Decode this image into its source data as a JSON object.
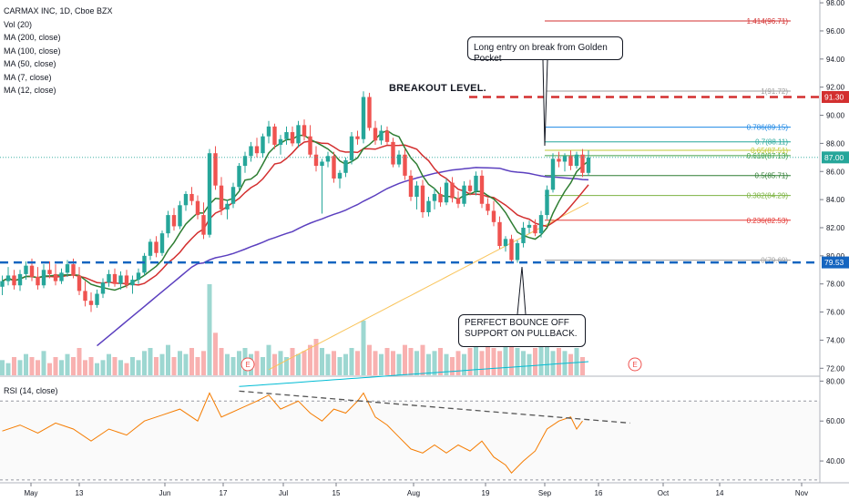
{
  "legend": {
    "symbol": "CARMAX INC, 1D, Cboe BZX",
    "lines": [
      "Vol (20)",
      "MA (200, close)",
      "MA (100, close)",
      "MA (50, close)",
      "MA (7, close)",
      "MA (12, close)"
    ]
  },
  "rsi_label": "RSI (14, close)",
  "annotations": {
    "breakout": "BREAKOUT LEVEL.",
    "long_entry": "Long entry on break from Golden Pocket",
    "bounce": "PERFECT BOUNCE OFF SUPPORT ON PULLBACK.",
    "earnings": [
      "E",
      "E"
    ]
  },
  "price_badges": {
    "resistance": "91.30",
    "support": "79.53",
    "last": "87.00"
  },
  "colors": {
    "up": "#26a69a",
    "down": "#ef5350",
    "ma200": "#00bcd4",
    "ma100": "#f9c45a",
    "ma50": "#5b3fbf",
    "ma7": "#2e7d32",
    "ma12": "#d32f2f",
    "resistance": "#d32f2f",
    "support": "#1565c0",
    "rsi": "#f57c00"
  },
  "chart_data": {
    "type": "candlestick",
    "x_ticks": [
      "May",
      "13",
      "Jun",
      "17",
      "Jul",
      "15",
      "Aug",
      "19",
      "Sep",
      "16",
      "Oct",
      "14",
      "Nov"
    ],
    "y_ticks": [
      "98.00",
      "96.00",
      "94.00",
      "92.00",
      "90.00",
      "88.00",
      "86.00",
      "84.00",
      "82.00",
      "80.00",
      "78.00",
      "76.00",
      "74.00",
      "72.00"
    ],
    "ylim": [
      71.5,
      98.2
    ],
    "rsi_ticks": [
      "80.00",
      "60.00",
      "40.00"
    ],
    "rsi_ylim": [
      30,
      82
    ],
    "support": 79.53,
    "resistance": 91.3,
    "fib_levels": [
      {
        "label": "1.414(96.71)",
        "value": 96.71,
        "color": "#d32f2f"
      },
      {
        "label": "1(91.72)",
        "value": 91.72,
        "color": "#9e9e9e"
      },
      {
        "label": "0.786(89.15)",
        "value": 89.15,
        "color": "#1e88e5"
      },
      {
        "label": "0.7(88.11)",
        "value": 88.11,
        "color": "#26a69a"
      },
      {
        "label": "0.65(87.51)",
        "value": 87.51,
        "color": "#c0ca33"
      },
      {
        "label": "0.618(87.13)",
        "value": 87.13,
        "color": "#43a047"
      },
      {
        "label": "0.5(85.71)",
        "value": 85.71,
        "color": "#2e7d32"
      },
      {
        "label": "0.382(84.29)",
        "value": 84.29,
        "color": "#7cb342"
      },
      {
        "label": "0.236(82.53)",
        "value": 82.53,
        "color": "#e53935"
      },
      {
        "label": "0(79.69)",
        "value": 79.69,
        "color": "#9e9e9e"
      }
    ],
    "candles": [
      {
        "o": 77.8,
        "h": 78.6,
        "l": 77.2,
        "c": 78.2
      },
      {
        "o": 78.2,
        "h": 79.2,
        "l": 77.9,
        "c": 78.6
      },
      {
        "o": 78.6,
        "h": 79.0,
        "l": 77.6,
        "c": 77.9
      },
      {
        "o": 77.9,
        "h": 79.0,
        "l": 77.5,
        "c": 78.7
      },
      {
        "o": 78.7,
        "h": 79.6,
        "l": 78.3,
        "c": 79.3
      },
      {
        "o": 79.3,
        "h": 79.8,
        "l": 78.2,
        "c": 78.5
      },
      {
        "o": 78.5,
        "h": 79.2,
        "l": 77.6,
        "c": 77.9
      },
      {
        "o": 77.9,
        "h": 79.4,
        "l": 77.7,
        "c": 79.0
      },
      {
        "o": 79.0,
        "h": 79.6,
        "l": 78.4,
        "c": 78.7
      },
      {
        "o": 78.7,
        "h": 79.4,
        "l": 77.9,
        "c": 78.2
      },
      {
        "o": 78.2,
        "h": 79.1,
        "l": 78.0,
        "c": 78.8
      },
      {
        "o": 78.8,
        "h": 79.7,
        "l": 78.5,
        "c": 79.4
      },
      {
        "o": 79.4,
        "h": 79.8,
        "l": 78.4,
        "c": 78.6
      },
      {
        "o": 78.6,
        "h": 79.2,
        "l": 77.2,
        "c": 77.5
      },
      {
        "o": 77.5,
        "h": 78.2,
        "l": 76.4,
        "c": 76.8
      },
      {
        "o": 76.8,
        "h": 77.4,
        "l": 76.0,
        "c": 76.5
      },
      {
        "o": 76.5,
        "h": 77.6,
        "l": 76.3,
        "c": 77.3
      },
      {
        "o": 77.3,
        "h": 78.4,
        "l": 77.0,
        "c": 78.1
      },
      {
        "o": 78.1,
        "h": 79.0,
        "l": 77.8,
        "c": 78.7
      },
      {
        "o": 78.7,
        "h": 79.1,
        "l": 77.8,
        "c": 78.0
      },
      {
        "o": 78.0,
        "h": 78.9,
        "l": 77.6,
        "c": 78.6
      },
      {
        "o": 78.6,
        "h": 79.0,
        "l": 77.7,
        "c": 77.9
      },
      {
        "o": 77.9,
        "h": 78.6,
        "l": 77.3,
        "c": 78.3
      },
      {
        "o": 78.3,
        "h": 79.1,
        "l": 78.0,
        "c": 78.8
      },
      {
        "o": 78.8,
        "h": 80.2,
        "l": 78.6,
        "c": 80.0
      },
      {
        "o": 80.0,
        "h": 81.2,
        "l": 79.7,
        "c": 81.0
      },
      {
        "o": 81.0,
        "h": 81.4,
        "l": 79.9,
        "c": 80.2
      },
      {
        "o": 80.2,
        "h": 81.8,
        "l": 80.0,
        "c": 81.6
      },
      {
        "o": 81.6,
        "h": 83.2,
        "l": 81.3,
        "c": 82.9
      },
      {
        "o": 82.9,
        "h": 83.4,
        "l": 81.8,
        "c": 82.1
      },
      {
        "o": 82.1,
        "h": 83.9,
        "l": 81.9,
        "c": 83.6
      },
      {
        "o": 83.6,
        "h": 84.6,
        "l": 83.2,
        "c": 84.4
      },
      {
        "o": 84.4,
        "h": 84.9,
        "l": 83.6,
        "c": 83.9
      },
      {
        "o": 83.9,
        "h": 84.3,
        "l": 82.6,
        "c": 82.9
      },
      {
        "o": 82.9,
        "h": 83.8,
        "l": 81.2,
        "c": 81.5
      },
      {
        "o": 81.5,
        "h": 87.6,
        "l": 81.3,
        "c": 87.3
      },
      {
        "o": 87.3,
        "h": 87.8,
        "l": 84.7,
        "c": 85.0
      },
      {
        "o": 85.0,
        "h": 85.6,
        "l": 82.9,
        "c": 83.3
      },
      {
        "o": 83.3,
        "h": 84.0,
        "l": 82.6,
        "c": 83.7
      },
      {
        "o": 83.7,
        "h": 85.2,
        "l": 83.4,
        "c": 84.9
      },
      {
        "o": 84.9,
        "h": 86.6,
        "l": 84.7,
        "c": 86.4
      },
      {
        "o": 86.4,
        "h": 87.4,
        "l": 85.9,
        "c": 87.1
      },
      {
        "o": 87.1,
        "h": 88.1,
        "l": 86.7,
        "c": 87.8
      },
      {
        "o": 87.8,
        "h": 88.4,
        "l": 87.0,
        "c": 87.3
      },
      {
        "o": 87.3,
        "h": 88.7,
        "l": 87.0,
        "c": 88.5
      },
      {
        "o": 88.5,
        "h": 89.6,
        "l": 88.0,
        "c": 89.2
      },
      {
        "o": 89.2,
        "h": 89.4,
        "l": 87.6,
        "c": 87.9
      },
      {
        "o": 87.9,
        "h": 88.6,
        "l": 87.2,
        "c": 88.3
      },
      {
        "o": 88.3,
        "h": 89.2,
        "l": 87.9,
        "c": 88.8
      },
      {
        "o": 88.8,
        "h": 89.2,
        "l": 87.8,
        "c": 88.0
      },
      {
        "o": 88.0,
        "h": 89.6,
        "l": 87.7,
        "c": 89.3
      },
      {
        "o": 89.3,
        "h": 89.7,
        "l": 88.2,
        "c": 88.5
      },
      {
        "o": 88.5,
        "h": 89.3,
        "l": 87.0,
        "c": 87.2
      },
      {
        "o": 87.2,
        "h": 87.8,
        "l": 86.0,
        "c": 86.4
      },
      {
        "o": 86.4,
        "h": 86.9,
        "l": 83.0,
        "c": 86.7
      },
      {
        "o": 86.7,
        "h": 87.4,
        "l": 86.3,
        "c": 87.1
      },
      {
        "o": 87.1,
        "h": 87.4,
        "l": 85.2,
        "c": 85.5
      },
      {
        "o": 85.5,
        "h": 86.1,
        "l": 84.8,
        "c": 85.9
      },
      {
        "o": 85.9,
        "h": 87.0,
        "l": 85.6,
        "c": 86.8
      },
      {
        "o": 86.8,
        "h": 88.8,
        "l": 86.5,
        "c": 88.5
      },
      {
        "o": 88.5,
        "h": 88.9,
        "l": 87.9,
        "c": 88.3
      },
      {
        "o": 88.3,
        "h": 91.7,
        "l": 88.0,
        "c": 91.3
      },
      {
        "o": 91.3,
        "h": 91.6,
        "l": 88.9,
        "c": 89.1
      },
      {
        "o": 89.1,
        "h": 89.6,
        "l": 87.9,
        "c": 88.2
      },
      {
        "o": 88.2,
        "h": 89.3,
        "l": 87.9,
        "c": 88.9
      },
      {
        "o": 88.9,
        "h": 89.2,
        "l": 87.9,
        "c": 88.1
      },
      {
        "o": 88.1,
        "h": 88.4,
        "l": 86.3,
        "c": 86.5
      },
      {
        "o": 86.5,
        "h": 87.5,
        "l": 86.3,
        "c": 87.2
      },
      {
        "o": 87.2,
        "h": 87.6,
        "l": 85.4,
        "c": 85.7
      },
      {
        "o": 85.7,
        "h": 86.1,
        "l": 83.9,
        "c": 84.2
      },
      {
        "o": 84.2,
        "h": 85.3,
        "l": 83.3,
        "c": 85.0
      },
      {
        "o": 85.0,
        "h": 85.4,
        "l": 82.7,
        "c": 83.1
      },
      {
        "o": 83.1,
        "h": 84.2,
        "l": 82.8,
        "c": 83.9
      },
      {
        "o": 83.9,
        "h": 84.8,
        "l": 83.3,
        "c": 84.4
      },
      {
        "o": 84.4,
        "h": 84.9,
        "l": 83.5,
        "c": 83.8
      },
      {
        "o": 83.8,
        "h": 85.5,
        "l": 83.6,
        "c": 85.2
      },
      {
        "o": 85.2,
        "h": 85.6,
        "l": 83.8,
        "c": 84.1
      },
      {
        "o": 84.1,
        "h": 84.6,
        "l": 83.4,
        "c": 83.7
      },
      {
        "o": 83.7,
        "h": 85.3,
        "l": 83.5,
        "c": 85.0
      },
      {
        "o": 85.0,
        "h": 85.4,
        "l": 84.3,
        "c": 84.6
      },
      {
        "o": 84.6,
        "h": 86.0,
        "l": 84.3,
        "c": 85.7
      },
      {
        "o": 85.7,
        "h": 86.1,
        "l": 83.4,
        "c": 83.7
      },
      {
        "o": 83.7,
        "h": 84.1,
        "l": 82.9,
        "c": 83.2
      },
      {
        "o": 83.2,
        "h": 83.9,
        "l": 82.1,
        "c": 82.4
      },
      {
        "o": 82.4,
        "h": 82.8,
        "l": 80.5,
        "c": 80.7
      },
      {
        "o": 80.7,
        "h": 81.4,
        "l": 80.3,
        "c": 81.2
      },
      {
        "o": 81.2,
        "h": 81.5,
        "l": 79.6,
        "c": 79.7
      },
      {
        "o": 79.7,
        "h": 81.1,
        "l": 79.5,
        "c": 80.9
      },
      {
        "o": 80.9,
        "h": 82.4,
        "l": 80.6,
        "c": 82.0
      },
      {
        "o": 82.0,
        "h": 82.5,
        "l": 81.6,
        "c": 82.2
      },
      {
        "o": 82.2,
        "h": 82.6,
        "l": 81.4,
        "c": 81.6
      },
      {
        "o": 81.6,
        "h": 83.2,
        "l": 81.3,
        "c": 82.9
      },
      {
        "o": 82.9,
        "h": 85.0,
        "l": 82.6,
        "c": 84.7
      },
      {
        "o": 84.7,
        "h": 87.3,
        "l": 84.5,
        "c": 86.9
      },
      {
        "o": 86.9,
        "h": 87.4,
        "l": 86.3,
        "c": 86.7
      },
      {
        "o": 86.7,
        "h": 87.3,
        "l": 86.0,
        "c": 87.1
      },
      {
        "o": 87.1,
        "h": 87.5,
        "l": 86.1,
        "c": 86.4
      },
      {
        "o": 86.4,
        "h": 87.4,
        "l": 86.2,
        "c": 87.2
      },
      {
        "o": 87.2,
        "h": 87.6,
        "l": 85.6,
        "c": 85.9
      },
      {
        "o": 85.9,
        "h": 87.5,
        "l": 85.7,
        "c": 87.0
      }
    ],
    "rsi": [
      {
        "x": 0,
        "v": 55
      },
      {
        "x": 3,
        "v": 58
      },
      {
        "x": 6,
        "v": 54
      },
      {
        "x": 9,
        "v": 59
      },
      {
        "x": 12,
        "v": 56
      },
      {
        "x": 15,
        "v": 50
      },
      {
        "x": 18,
        "v": 56
      },
      {
        "x": 21,
        "v": 53
      },
      {
        "x": 24,
        "v": 60
      },
      {
        "x": 27,
        "v": 63
      },
      {
        "x": 30,
        "v": 66
      },
      {
        "x": 33,
        "v": 60
      },
      {
        "x": 35,
        "v": 74
      },
      {
        "x": 37,
        "v": 62
      },
      {
        "x": 40,
        "v": 66
      },
      {
        "x": 43,
        "v": 70
      },
      {
        "x": 45,
        "v": 73
      },
      {
        "x": 47,
        "v": 66
      },
      {
        "x": 50,
        "v": 70
      },
      {
        "x": 52,
        "v": 64
      },
      {
        "x": 54,
        "v": 60
      },
      {
        "x": 56,
        "v": 66
      },
      {
        "x": 58,
        "v": 64
      },
      {
        "x": 60,
        "v": 70
      },
      {
        "x": 61,
        "v": 74
      },
      {
        "x": 63,
        "v": 62
      },
      {
        "x": 65,
        "v": 58
      },
      {
        "x": 67,
        "v": 52
      },
      {
        "x": 69,
        "v": 46
      },
      {
        "x": 71,
        "v": 44
      },
      {
        "x": 73,
        "v": 48
      },
      {
        "x": 75,
        "v": 44
      },
      {
        "x": 77,
        "v": 48
      },
      {
        "x": 79,
        "v": 45
      },
      {
        "x": 81,
        "v": 50
      },
      {
        "x": 83,
        "v": 42
      },
      {
        "x": 85,
        "v": 38
      },
      {
        "x": 86,
        "v": 34
      },
      {
        "x": 88,
        "v": 40
      },
      {
        "x": 90,
        "v": 45
      },
      {
        "x": 92,
        "v": 56
      },
      {
        "x": 94,
        "v": 60
      },
      {
        "x": 96,
        "v": 62
      },
      {
        "x": 97,
        "v": 56
      },
      {
        "x": 98,
        "v": 60
      }
    ],
    "volume": [
      5,
      4,
      6,
      5,
      7,
      6,
      5,
      8,
      4,
      6,
      5,
      7,
      6,
      9,
      5,
      6,
      4,
      5,
      7,
      6,
      5,
      4,
      6,
      5,
      8,
      9,
      6,
      7,
      10,
      6,
      8,
      7,
      9,
      6,
      8,
      30,
      14,
      9,
      7,
      6,
      8,
      9,
      7,
      8,
      6,
      10,
      7,
      8,
      6,
      9,
      7,
      8,
      10,
      12,
      9,
      7,
      8,
      6,
      7,
      9,
      8,
      18,
      10,
      8,
      7,
      9,
      8,
      7,
      10,
      9,
      8,
      10,
      7,
      8,
      9,
      7,
      6,
      8,
      7,
      9,
      10,
      8,
      11,
      9,
      8,
      10,
      12,
      9,
      8,
      7,
      9,
      11,
      10,
      8,
      9,
      8,
      7,
      9,
      6
    ]
  }
}
